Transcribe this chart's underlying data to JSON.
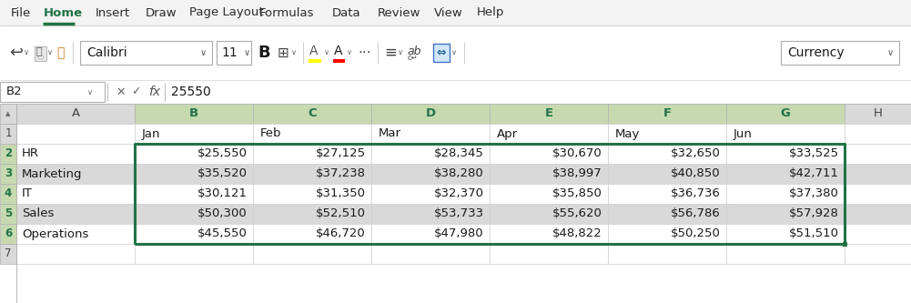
{
  "menu_items": [
    "File",
    "Home",
    "Insert",
    "Draw",
    "Page Layout",
    "Formulas",
    "Data",
    "Review",
    "View",
    "Help"
  ],
  "formula_bar_cell": "B2",
  "formula_bar_value": "25550",
  "col_headers": [
    "A",
    "B",
    "C",
    "D",
    "E",
    "F",
    "G",
    "H"
  ],
  "row_headers": [
    "1",
    "2",
    "3",
    "4",
    "5",
    "6",
    "7"
  ],
  "months": [
    "Jan",
    "Feb",
    "Mar",
    "Apr",
    "May",
    "Jun"
  ],
  "departments": [
    "HR",
    "Marketing",
    "IT",
    "Sales",
    "Operations"
  ],
  "data": [
    [
      25550,
      27125,
      28345,
      30670,
      32650,
      33525
    ],
    [
      35520,
      37238,
      38280,
      38997,
      40850,
      42711
    ],
    [
      30121,
      31350,
      32370,
      35850,
      36736,
      37380
    ],
    [
      50300,
      52510,
      53733,
      55620,
      56786,
      57928
    ],
    [
      45550,
      46720,
      47980,
      48822,
      50250,
      51510
    ]
  ],
  "row_alt_colors": [
    "#ffffff",
    "#d9d9d9",
    "#ffffff",
    "#d9d9d9",
    "#ffffff"
  ],
  "col_hdr_selected_bg": "#c6d9b0",
  "col_hdr_normal_bg": "#d9d9d9",
  "row_hdr_selected_bg": "#c6d9b0",
  "row_hdr_normal_bg": "#d9d9d9",
  "sel_border": "#217346",
  "grid_color": "#b0b0b0",
  "menu_bg": "#f3f3f3",
  "toolbar_bg": "#ffffff",
  "formula_bg": "#ffffff",
  "sheet_bg": "#ffffff",
  "text_dark": "#000000",
  "text_green": "#217346",
  "home_color": "#217346"
}
